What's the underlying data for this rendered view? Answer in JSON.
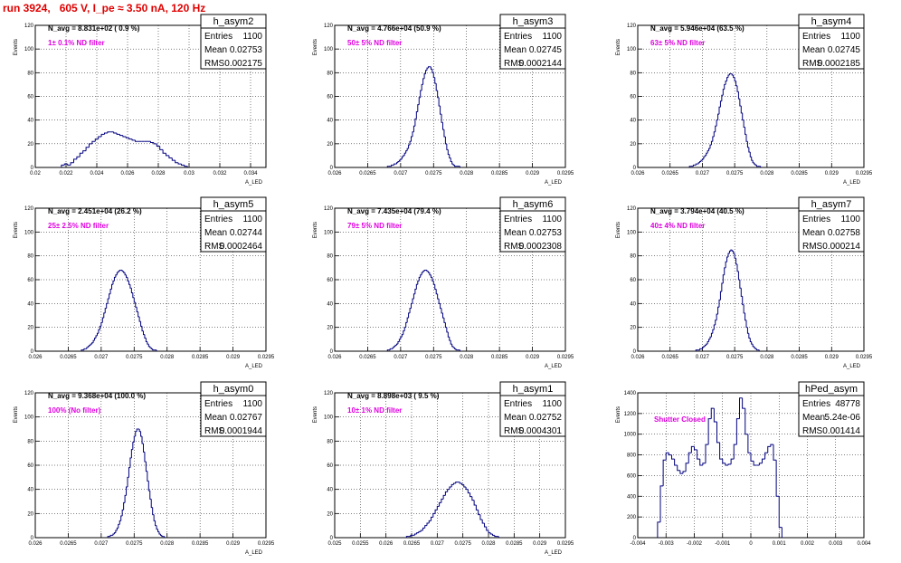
{
  "header": {
    "run_title": "run 3924,   605 V, I_pe ≈ 3.50 nA, 120 Hz"
  },
  "colors": {
    "title": "#e00000",
    "histogram": "#00007f",
    "annotation": "#e000e0",
    "axes": "#000000"
  },
  "chart_data": [
    {
      "type": "histogram",
      "title": "h_asym2",
      "stats": {
        "entries": "1100",
        "mean": "0.02753",
        "rms": "0.002175"
      },
      "n_avg": "N_avg = 8.831e+02 ( 0.9 %)",
      "filter": "1± 0.1% ND filter",
      "xlabel": "A_LED",
      "ylabel": "Events",
      "xlim": [
        0.02,
        0.035
      ],
      "ylim": [
        0,
        120
      ],
      "xticks": [
        "0.02",
        "0.022",
        "0.024",
        "0.026",
        "0.028",
        "0.03",
        "0.032",
        "0.034"
      ],
      "yticks": [
        "0",
        "20",
        "40",
        "60",
        "80",
        "100",
        "120"
      ],
      "grid": true,
      "bins": {
        "start": 0.0217,
        "width": 0.0002,
        "counts": [
          2,
          3,
          2,
          4,
          7,
          9,
          12,
          14,
          17,
          20,
          22,
          24,
          26,
          28,
          29,
          30,
          30,
          29,
          28,
          27,
          26,
          25,
          24,
          23,
          22,
          22,
          22,
          22,
          22,
          21,
          20,
          18,
          15,
          12,
          10,
          8,
          6,
          4,
          3,
          2,
          1
        ]
      }
    },
    {
      "type": "histogram",
      "title": "h_asym3",
      "stats": {
        "entries": "1100",
        "mean": "0.02745",
        "rms": "0.0002144"
      },
      "n_avg": "N_avg = 4.766e+04 (50.9 %)",
      "filter": "50± 5% ND filter",
      "xlabel": "A_LED",
      "ylabel": "Events",
      "xlim": [
        0.026,
        0.0295
      ],
      "ylim": [
        0,
        120
      ],
      "xticks": [
        "0.026",
        "0.0265",
        "0.027",
        "0.0275",
        "0.028",
        "0.0285",
        "0.029",
        "0.0295"
      ],
      "yticks": [
        "0",
        "20",
        "40",
        "60",
        "80",
        "100",
        "120"
      ],
      "grid": true,
      "bins": {
        "start": 0.0268,
        "width": 2e-05,
        "counts": [
          1,
          1,
          1,
          2,
          2,
          3,
          3,
          4,
          5,
          6,
          7,
          9,
          10,
          12,
          14,
          16,
          19,
          22,
          26,
          30,
          35,
          41,
          47,
          53,
          59,
          65,
          70,
          75,
          79,
          82,
          84,
          85,
          85,
          83,
          80,
          76,
          71,
          65,
          59,
          52,
          45,
          38,
          32,
          26,
          20,
          15,
          11,
          8,
          5,
          3,
          2,
          1,
          1,
          1,
          1
        ]
      }
    },
    {
      "type": "histogram",
      "title": "h_asym4",
      "stats": {
        "entries": "1100",
        "mean": "0.02745",
        "rms": "0.0002185"
      },
      "n_avg": "N_avg = 5.946e+04 (63.5 %)",
      "filter": "63± 5% ND filter",
      "xlabel": "A_LED",
      "ylabel": "Events",
      "xlim": [
        0.026,
        0.0295
      ],
      "ylim": [
        0,
        120
      ],
      "xticks": [
        "0.026",
        "0.0265",
        "0.027",
        "0.0275",
        "0.028",
        "0.0285",
        "0.029",
        "0.0295"
      ],
      "yticks": [
        "0",
        "20",
        "40",
        "60",
        "80",
        "100",
        "120"
      ],
      "grid": true,
      "bins": {
        "start": 0.0268,
        "width": 2e-05,
        "counts": [
          1,
          1,
          1,
          2,
          2,
          3,
          3,
          4,
          5,
          6,
          7,
          9,
          10,
          12,
          14,
          16,
          19,
          22,
          26,
          30,
          35,
          40,
          45,
          51,
          56,
          61,
          66,
          70,
          73,
          76,
          78,
          79,
          79,
          78,
          76,
          73,
          69,
          64,
          58,
          52,
          46,
          40,
          34,
          28,
          22,
          17,
          13,
          9,
          6,
          4,
          3,
          2,
          1,
          1,
          1
        ]
      }
    },
    {
      "type": "histogram",
      "title": "h_asym5",
      "stats": {
        "entries": "1100",
        "mean": "0.02744",
        "rms": "0.0002464"
      },
      "n_avg": "N_avg = 2.451e+04 (26.2 %)",
      "filter": "25± 2.5% ND filter",
      "xlabel": "A_LED",
      "ylabel": "Events",
      "xlim": [
        0.026,
        0.0295
      ],
      "ylim": [
        0,
        120
      ],
      "xticks": [
        "0.026",
        "0.0265",
        "0.027",
        "0.0275",
        "0.028",
        "0.0285",
        "0.029",
        "0.0295"
      ],
      "yticks": [
        "0",
        "20",
        "40",
        "60",
        "80",
        "100",
        "120"
      ],
      "grid": true,
      "bins": {
        "start": 0.0267,
        "width": 2e-05,
        "counts": [
          1,
          1,
          2,
          2,
          3,
          4,
          5,
          6,
          7,
          9,
          11,
          13,
          15,
          18,
          21,
          24,
          28,
          32,
          36,
          40,
          44,
          48,
          52,
          56,
          59,
          62,
          64,
          66,
          67,
          68,
          68,
          67,
          66,
          64,
          62,
          59,
          56,
          53,
          49,
          45,
          41,
          37,
          33,
          29,
          25,
          21,
          17,
          14,
          11,
          8,
          6,
          4,
          3,
          2,
          1,
          1,
          1
        ]
      }
    },
    {
      "type": "histogram",
      "title": "h_asym6",
      "stats": {
        "entries": "1100",
        "mean": "0.02753",
        "rms": "0.0002308"
      },
      "n_avg": "N_avg = 7.435e+04 (79.4 %)",
      "filter": "79± 5% ND filter",
      "xlabel": "A_LED",
      "ylabel": "Events",
      "xlim": [
        0.026,
        0.0295
      ],
      "ylim": [
        0,
        120
      ],
      "xticks": [
        "0.026",
        "0.0265",
        "0.027",
        "0.0275",
        "0.028",
        "0.0285",
        "0.029",
        "0.0295"
      ],
      "yticks": [
        "0",
        "20",
        "40",
        "60",
        "80",
        "100",
        "120"
      ],
      "grid": true,
      "bins": {
        "start": 0.0268,
        "width": 2e-05,
        "counts": [
          1,
          1,
          2,
          2,
          3,
          4,
          5,
          6,
          8,
          10,
          12,
          14,
          17,
          20,
          24,
          28,
          32,
          36,
          40,
          44,
          48,
          52,
          56,
          59,
          62,
          64,
          66,
          67,
          68,
          68,
          67,
          66,
          64,
          62,
          59,
          56,
          52,
          48,
          44,
          40,
          36,
          32,
          28,
          24,
          20,
          16,
          12,
          9,
          6,
          4,
          3,
          2,
          1,
          1,
          1
        ]
      }
    },
    {
      "type": "histogram",
      "title": "h_asym7",
      "stats": {
        "entries": "1100",
        "mean": "0.02758",
        "rms": "0.000214"
      },
      "n_avg": "N_avg = 3.794e+04 (40.5 %)",
      "filter": "40± 4% ND filter",
      "xlabel": "A_LED",
      "ylabel": "Events",
      "xlim": [
        0.026,
        0.0295
      ],
      "ylim": [
        0,
        120
      ],
      "xticks": [
        "0.026",
        "0.0265",
        "0.027",
        "0.0275",
        "0.028",
        "0.0285",
        "0.029",
        "0.0295"
      ],
      "yticks": [
        "0",
        "20",
        "40",
        "60",
        "80",
        "100",
        "120"
      ],
      "grid": true,
      "bins": {
        "start": 0.0269,
        "width": 2e-05,
        "counts": [
          1,
          1,
          1,
          2,
          2,
          3,
          4,
          5,
          6,
          8,
          10,
          12,
          15,
          18,
          22,
          26,
          31,
          37,
          43,
          50,
          57,
          64,
          70,
          75,
          79,
          82,
          84,
          85,
          84,
          82,
          78,
          73,
          67,
          60,
          53,
          46,
          39,
          32,
          26,
          20,
          15,
          11,
          8,
          6,
          4,
          3,
          2,
          1,
          1
        ]
      }
    },
    {
      "type": "histogram",
      "title": "h_asym0",
      "stats": {
        "entries": "1100",
        "mean": "0.02767",
        "rms": "0.0001944"
      },
      "n_avg": "N_avg = 9.368e+04 (100.0 %)",
      "filter": "100% (No filter)",
      "xlabel": "A_LED",
      "ylabel": "Events",
      "xlim": [
        0.026,
        0.0295
      ],
      "ylim": [
        0,
        120
      ],
      "xticks": [
        "0.026",
        "0.0265",
        "0.027",
        "0.0275",
        "0.028",
        "0.0285",
        "0.029",
        "0.0295"
      ],
      "yticks": [
        "0",
        "20",
        "40",
        "60",
        "80",
        "100",
        "120"
      ],
      "grid": true,
      "bins": {
        "start": 0.0271,
        "width": 2e-05,
        "counts": [
          1,
          1,
          2,
          2,
          3,
          4,
          6,
          8,
          11,
          14,
          18,
          23,
          29,
          35,
          42,
          50,
          58,
          66,
          73,
          79,
          84,
          88,
          90,
          90,
          88,
          84,
          78,
          71,
          63,
          55,
          47,
          39,
          32,
          25,
          19,
          14,
          10,
          7,
          5,
          3,
          2,
          1,
          1
        ]
      }
    },
    {
      "type": "histogram",
      "title": "h_asym1",
      "stats": {
        "entries": "1100",
        "mean": "0.02752",
        "rms": "0.0004301"
      },
      "n_avg": "N_avg = 8.898e+03 ( 9.5 %)",
      "filter": "10± 1% ND filter",
      "xlabel": "A_LED",
      "ylabel": "Events",
      "xlim": [
        0.025,
        0.0295
      ],
      "ylim": [
        0,
        120
      ],
      "xticks": [
        "0.025",
        "0.0255",
        "0.026",
        "0.0265",
        "0.027",
        "0.0275",
        "0.028",
        "0.0285",
        "0.029",
        "0.0295"
      ],
      "yticks": [
        "0",
        "20",
        "40",
        "60",
        "80",
        "100",
        "120"
      ],
      "grid": true,
      "bins": {
        "start": 0.0264,
        "width": 4e-05,
        "counts": [
          1,
          1,
          2,
          2,
          3,
          4,
          5,
          6,
          8,
          10,
          12,
          14,
          17,
          20,
          23,
          26,
          29,
          32,
          35,
          38,
          40,
          42,
          44,
          45,
          46,
          46,
          45,
          44,
          42,
          40,
          37,
          34,
          31,
          27,
          23,
          19,
          15,
          12,
          9,
          6,
          4,
          3,
          2,
          1,
          1
        ]
      }
    },
    {
      "type": "histogram",
      "title": "hPed_asym",
      "stats": {
        "entries": "48778",
        "mean": "5.24e-06",
        "rms": "0.001414"
      },
      "n_avg": "",
      "filter": "Shutter Closed",
      "xlabel": "",
      "ylabel": "Events",
      "xlim": [
        -0.004,
        0.004
      ],
      "ylim": [
        0,
        1400
      ],
      "xticks": [
        "-0.004",
        "-0.003",
        "-0.002",
        "-0.001",
        "0",
        "0.001",
        "0.002",
        "0.003",
        "0.004"
      ],
      "yticks": [
        "0",
        "200",
        "400",
        "600",
        "800",
        "1000",
        "1200",
        "1400"
      ],
      "grid": true,
      "bins": {
        "start": -0.0033,
        "width": 0.0001,
        "counts": [
          150,
          500,
          750,
          820,
          800,
          760,
          700,
          650,
          620,
          640,
          720,
          820,
          880,
          850,
          760,
          700,
          720,
          900,
          1150,
          1250,
          1120,
          920,
          760,
          720,
          700,
          710,
          760,
          900,
          1150,
          1350,
          1250,
          1000,
          820,
          740,
          700,
          700,
          720,
          760,
          820,
          880,
          900,
          750,
          400,
          100
        ]
      }
    }
  ]
}
